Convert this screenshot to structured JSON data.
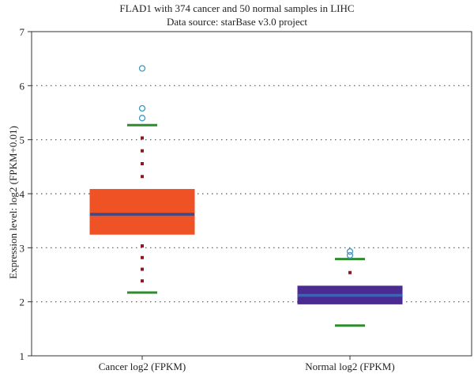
{
  "chart_data": {
    "type": "boxplot",
    "title": "FLAD1 with 374 cancer and 50 normal samples in LIHC",
    "subtitle": "Data source: starBase v3.0 project",
    "xlabel": "",
    "ylabel": "Expression level: log2 (FPKM+0.01)",
    "ylim": [
      1,
      7
    ],
    "yticks": [
      "1",
      "2",
      "3",
      "4",
      "5",
      "6",
      "7"
    ],
    "grid": "horizontal-dotted",
    "categories": [
      "Cancer log2 (FPKM)",
      "Normal log2 (FPKM)"
    ],
    "boxes": [
      {
        "category": "Cancer log2 (FPKM)",
        "whisker_low": 2.17,
        "q1": 3.25,
        "median": 3.62,
        "q3": 4.08,
        "whisker_high": 5.27,
        "outliers": [
          5.4,
          5.58,
          6.32
        ],
        "color": "#EF5224",
        "median_color": "#3A4B8C",
        "whisker_color": "#2E8B2E",
        "dot_color": "#8B1A1A"
      },
      {
        "category": "Normal log2 (FPKM)",
        "whisker_low": 1.56,
        "q1": 1.96,
        "median": 2.12,
        "q3": 2.29,
        "whisker_high": 2.79,
        "outliers": [
          2.86,
          2.93
        ],
        "color": "#4B2A91",
        "median_color": "#3C63B8",
        "whisker_color": "#2E8B2E",
        "dot_color": "#8B1A1A"
      }
    ],
    "outlier_color": "#3A9AC8"
  }
}
